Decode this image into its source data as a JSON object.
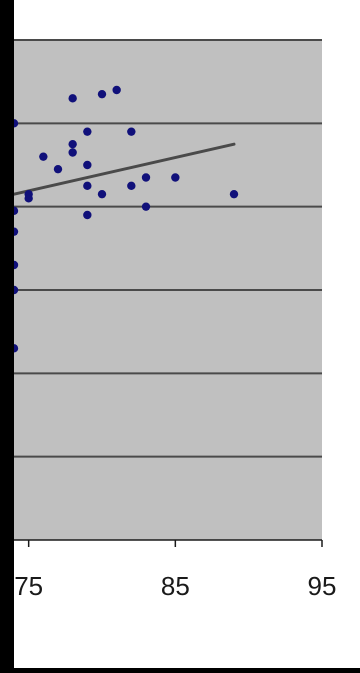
{
  "chart_data": {
    "type": "scatter",
    "title": "",
    "xlabel": "",
    "ylabel": "",
    "xlim": [
      74,
      95
    ],
    "ylim": [
      0,
      6
    ],
    "x_ticks": [
      75,
      85,
      95
    ],
    "x_tick_labels": [
      "75",
      "85",
      "95"
    ],
    "y_gridlines": [
      1,
      2,
      3,
      4,
      5,
      6
    ],
    "grid": true,
    "legend": "none",
    "colors": {
      "plot_background": "#C0C0C0",
      "figure_background": "#FFFFFF",
      "outer_background": "#000000",
      "marker": "#10107A",
      "trendline": "#4A4A4A",
      "gridline": "#4A4A4A",
      "axis": "#1A1A1A",
      "tick_label": "#1A1A1A"
    },
    "series": [
      {
        "points": [
          [
            74,
            5.0
          ],
          [
            74,
            3.95
          ],
          [
            74,
            3.7
          ],
          [
            74,
            3.3
          ],
          [
            74,
            3.0
          ],
          [
            74,
            2.3
          ],
          [
            75,
            4.15
          ],
          [
            75,
            4.1
          ],
          [
            76,
            4.6
          ],
          [
            77,
            4.45
          ],
          [
            78,
            5.3
          ],
          [
            78,
            4.75
          ],
          [
            78,
            4.65
          ],
          [
            79,
            4.9
          ],
          [
            79,
            4.5
          ],
          [
            79,
            4.25
          ],
          [
            79,
            3.9
          ],
          [
            80,
            5.35
          ],
          [
            80,
            4.15
          ],
          [
            81,
            5.4
          ],
          [
            82,
            4.9
          ],
          [
            82,
            4.25
          ],
          [
            83,
            4.35
          ],
          [
            83,
            4.0
          ],
          [
            85,
            4.35
          ],
          [
            89,
            4.15
          ]
        ]
      }
    ],
    "trendline": {
      "x": [
        74,
        89
      ],
      "y": [
        4.15,
        4.75
      ]
    }
  }
}
